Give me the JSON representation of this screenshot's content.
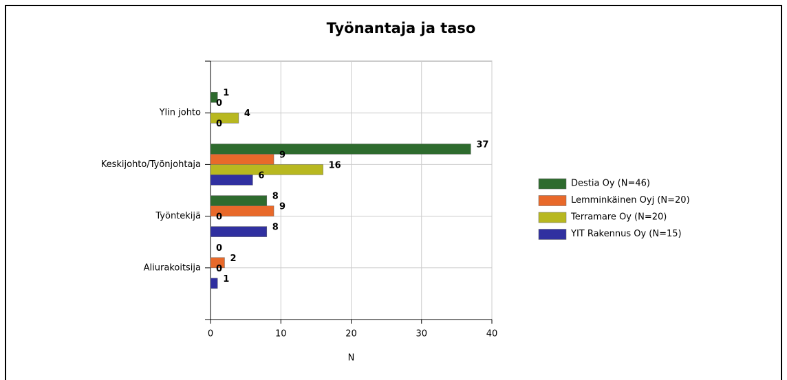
{
  "chart_data": {
    "type": "bar",
    "orientation": "horizontal",
    "title": "Työnantaja ja taso",
    "x_label": "N",
    "categories": [
      "Ylin johto",
      "Keskijohto/Työnjohtaja",
      "Työntekijä",
      "Aliurakoitsija"
    ],
    "series": [
      {
        "name": "Destia Oy (N=46)",
        "color": "#2e6b2e",
        "values": [
          1,
          37,
          8,
          0
        ]
      },
      {
        "name": "Lemminkäinen Oyj (N=20)",
        "color": "#e8692a",
        "values": [
          0,
          9,
          9,
          2
        ]
      },
      {
        "name": "Terramare Oy (N=20)",
        "color": "#b8b820",
        "values": [
          4,
          16,
          0,
          0
        ]
      },
      {
        "name": "YIT Rakennus Oy (N=15)",
        "color": "#3030a0",
        "values": [
          0,
          6,
          8,
          1
        ]
      }
    ],
    "xlim": [
      0,
      40
    ],
    "xticks": [
      0,
      10,
      20,
      30,
      40
    ],
    "grid": true,
    "legend": "right"
  }
}
